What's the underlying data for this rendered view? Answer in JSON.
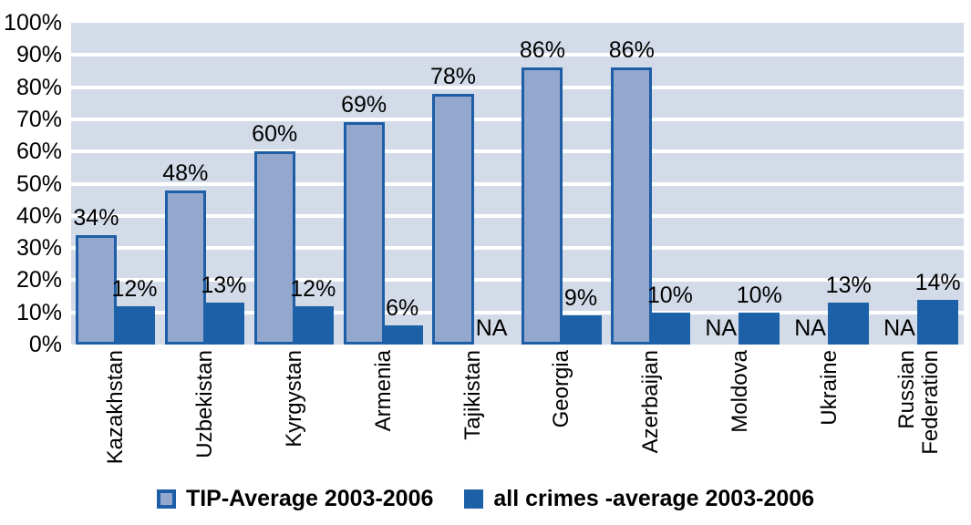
{
  "chart_data": {
    "type": "bar",
    "categories": [
      "Kazakhstan",
      "Uzbekistan",
      "Kyrgystan",
      "Armenia",
      "Tajikistan",
      "Georgia",
      "Azerbaijan",
      "Moldova",
      "Ukraine",
      "Russian Federation"
    ],
    "series": [
      {
        "name": "TIP-Average 2003-2006",
        "values": [
          34,
          48,
          60,
          69,
          78,
          86,
          86,
          null,
          null,
          null
        ],
        "labels": [
          "34%",
          "48%",
          "60%",
          "69%",
          "78%",
          "86%",
          "86%",
          "NA",
          "NA",
          "NA"
        ],
        "color": "#94A8CE",
        "border_color": "#1E5EA6"
      },
      {
        "name": "all crimes -average 2003-2006",
        "values": [
          12,
          13,
          12,
          6,
          null,
          9,
          10,
          10,
          13,
          14
        ],
        "labels": [
          "12%",
          "13%",
          "12%",
          "6%",
          "NA",
          "9%",
          "10%",
          "10%",
          "13%",
          "14%"
        ],
        "color": "#1C61A7",
        "border_color": null
      }
    ],
    "na_label": "NA",
    "y_ticks": [
      "100%",
      "90%",
      "80%",
      "70%",
      "60%",
      "50%",
      "40%",
      "30%",
      "20%",
      "10%",
      "0%"
    ],
    "ylim": [
      0,
      100
    ],
    "xlabel": "",
    "ylabel": "",
    "grid": true,
    "legend_position": "bottom",
    "plot_bg_color": "#D3DBE8",
    "gridline_color": "#FFFFFF",
    "text_color": "#000000",
    "background_color": "#FFFFFF"
  }
}
